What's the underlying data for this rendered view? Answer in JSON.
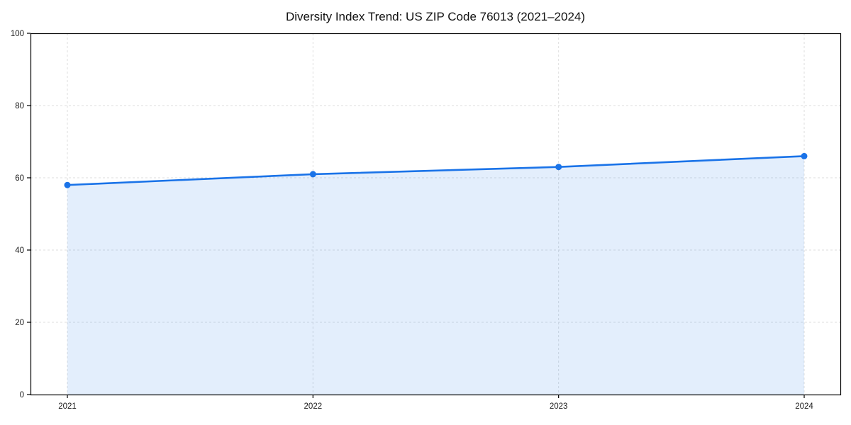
{
  "title": "Diversity Index Trend: US ZIP Code 76013 (2021–2024)",
  "chart_data": {
    "type": "area",
    "title": "Diversity Index Trend: US ZIP Code 76013 (2021–2024)",
    "x": [
      "2021",
      "2022",
      "2023",
      "2024"
    ],
    "series": [
      {
        "name": "Diversity Index",
        "values": [
          58,
          61,
          63,
          66
        ]
      }
    ],
    "xlabel": "",
    "ylabel": "",
    "ylim": [
      0,
      100
    ],
    "yticks": [
      0,
      20,
      40,
      60,
      80,
      100
    ],
    "grid": true,
    "grid_style": "dashed",
    "legend_position": "none",
    "colors": {
      "line": "#1a73e8",
      "marker": "#1a73e8",
      "fill": "rgba(26,115,232,0.12)",
      "gridline": "#dedede",
      "axis": "#000000",
      "tick_text": "#1a1a1a",
      "title_text": "#111111",
      "background": "#ffffff"
    }
  }
}
